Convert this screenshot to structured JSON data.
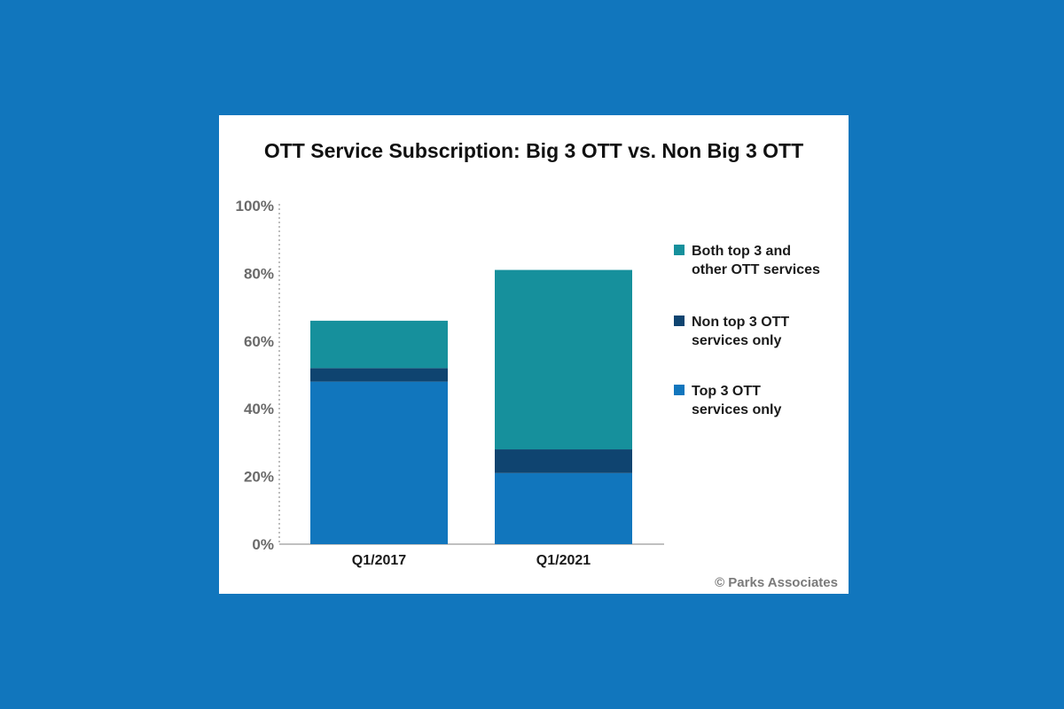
{
  "page": {
    "background_color": "#1176bd",
    "card_color": "#ffffff"
  },
  "chart_data": {
    "type": "bar",
    "stacked": true,
    "title": "OTT Service Subscription: Big 3 OTT vs. Non Big 3 OTT",
    "categories": [
      "Q1/2017",
      "Q1/2021"
    ],
    "series": [
      {
        "name": "Top 3 OTT services only",
        "color": "#1176bd",
        "values": [
          48,
          21
        ]
      },
      {
        "name": "Non top 3 OTT services only",
        "color": "#0f4470",
        "values": [
          4,
          7
        ]
      },
      {
        "name": "Both top 3 and other OTT services",
        "color": "#16909c",
        "values": [
          14,
          53
        ]
      }
    ],
    "ylim": [
      0,
      100
    ],
    "yticks": [
      "0%",
      "20%",
      "40%",
      "60%",
      "80%",
      "100%"
    ],
    "ytick_values": [
      0,
      20,
      40,
      60,
      80,
      100
    ],
    "legend_position": "right",
    "legend_order": [
      2,
      1,
      0
    ],
    "legend_lines": [
      [
        "Both top 3 and",
        "other OTT services"
      ],
      [
        "Non top 3 OTT",
        "services only"
      ],
      [
        "Top 3 OTT",
        "services only"
      ]
    ],
    "grid": false,
    "xlabel": "",
    "ylabel": ""
  },
  "credit": "© Parks Associates"
}
